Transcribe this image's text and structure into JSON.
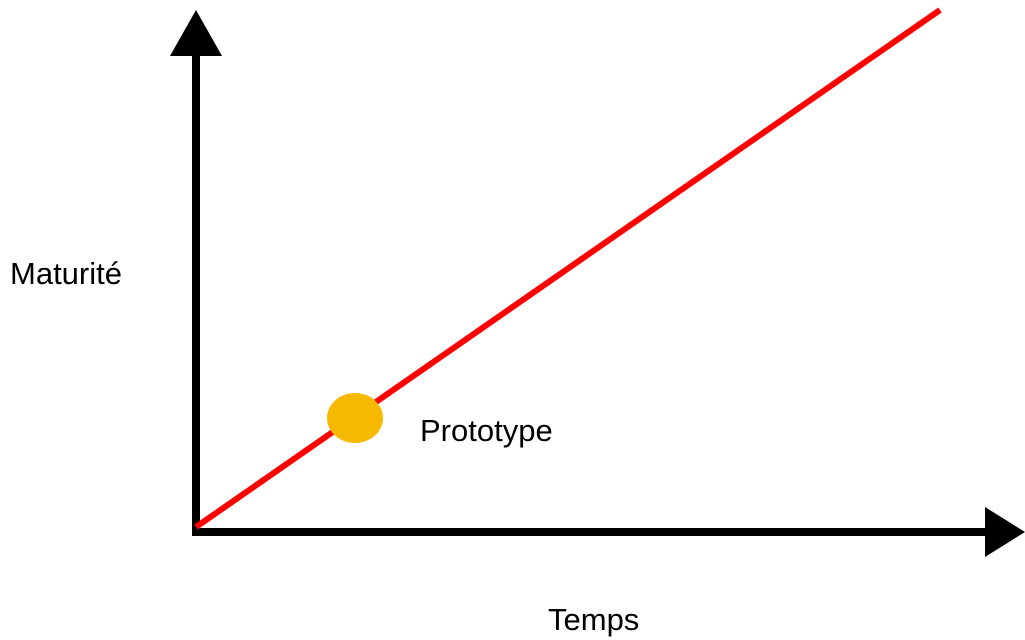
{
  "axis_labels": {
    "y": "Maturité",
    "x": "Temps"
  },
  "point": {
    "label": "Prototype"
  }
}
